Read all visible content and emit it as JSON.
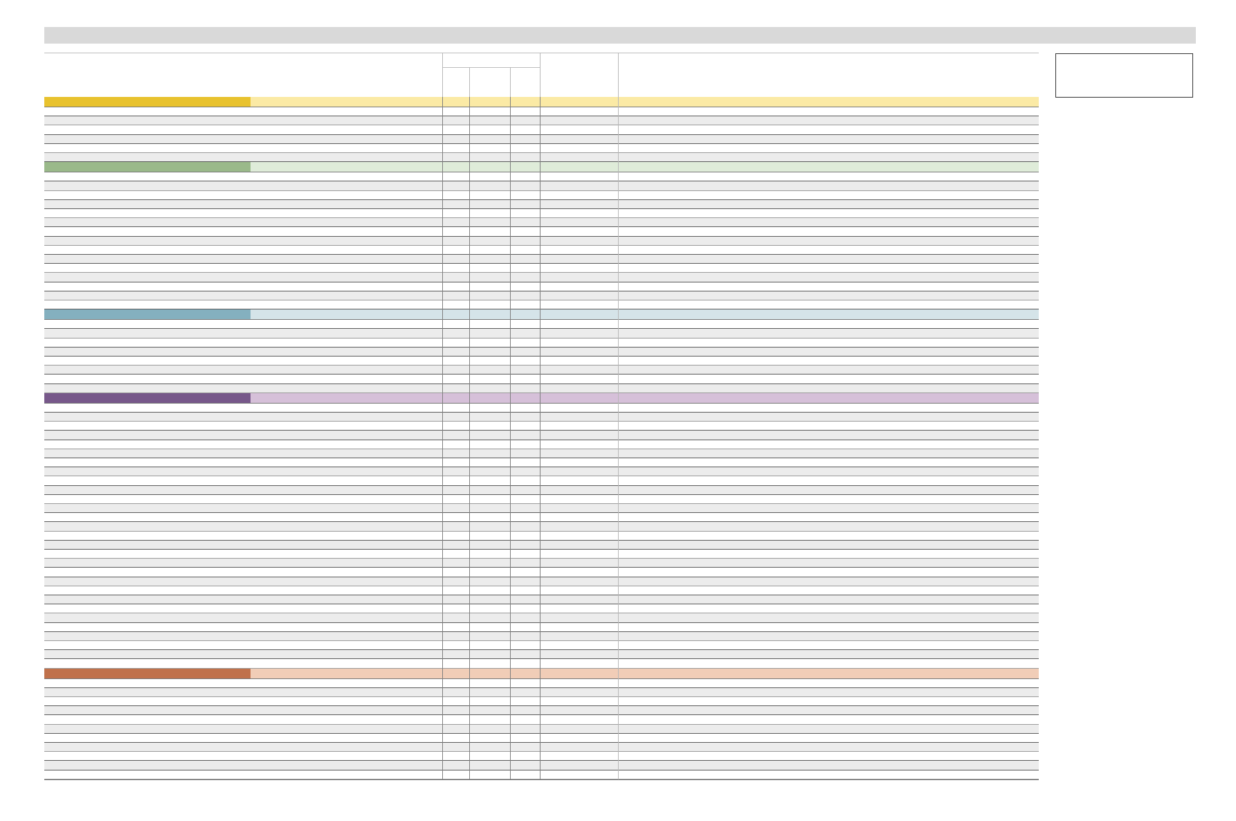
{
  "header": {
    "title": ""
  },
  "side_box": {
    "text": ""
  },
  "colors": {
    "topbar": "#d9d9d9",
    "row_gray": "#ececec",
    "groups": [
      {
        "dark": "#e8c22e",
        "light": "#fbeaa5"
      },
      {
        "dark": "#9ab98a",
        "light": "#dfecd9"
      },
      {
        "dark": "#84b0bf",
        "light": "#d5e4e9"
      },
      {
        "dark": "#77588a",
        "light": "#d6c0d9"
      },
      {
        "dark": "#c0714b",
        "light": "#f1cdb7"
      }
    ]
  },
  "groups": [
    {
      "label": "",
      "row_count": 6
    },
    {
      "label": "",
      "row_count": 15
    },
    {
      "label": "",
      "row_count": 8
    },
    {
      "label": "",
      "row_count": 29
    },
    {
      "label": "",
      "row_count": 11
    }
  ]
}
